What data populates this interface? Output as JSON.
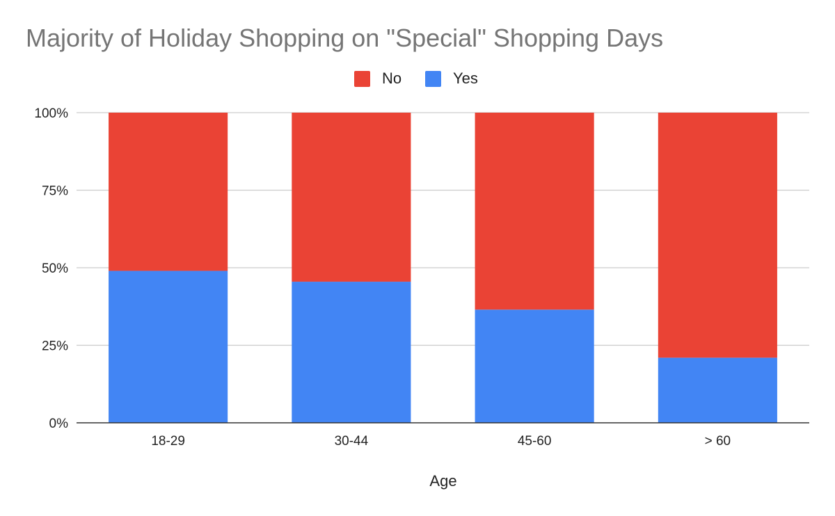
{
  "chart_data": {
    "type": "bar",
    "stacked": true,
    "stack_mode": "percent",
    "title": "Majority of Holiday Shopping on \"Special\" Shopping Days",
    "xlabel": "Age",
    "ylabel": "",
    "categories": [
      "18-29",
      "30-44",
      "45-60",
      "> 60"
    ],
    "series": [
      {
        "name": "Yes",
        "color": "#4285f4",
        "values": [
          49,
          45.5,
          36.5,
          21
        ]
      },
      {
        "name": "No",
        "color": "#ea4335",
        "values": [
          51,
          54.5,
          63.5,
          79
        ]
      }
    ],
    "legend": {
      "position": "top",
      "order": [
        "No",
        "Yes"
      ]
    },
    "ylim": [
      0,
      100
    ],
    "yticks": [
      0,
      25,
      50,
      75,
      100
    ],
    "ytick_labels": [
      "0%",
      "25%",
      "50%",
      "75%",
      "100%"
    ],
    "grid": true
  },
  "colors": {
    "title": "#757575",
    "text": "#222222",
    "grid": "#cccccc",
    "axis": "#333333"
  }
}
